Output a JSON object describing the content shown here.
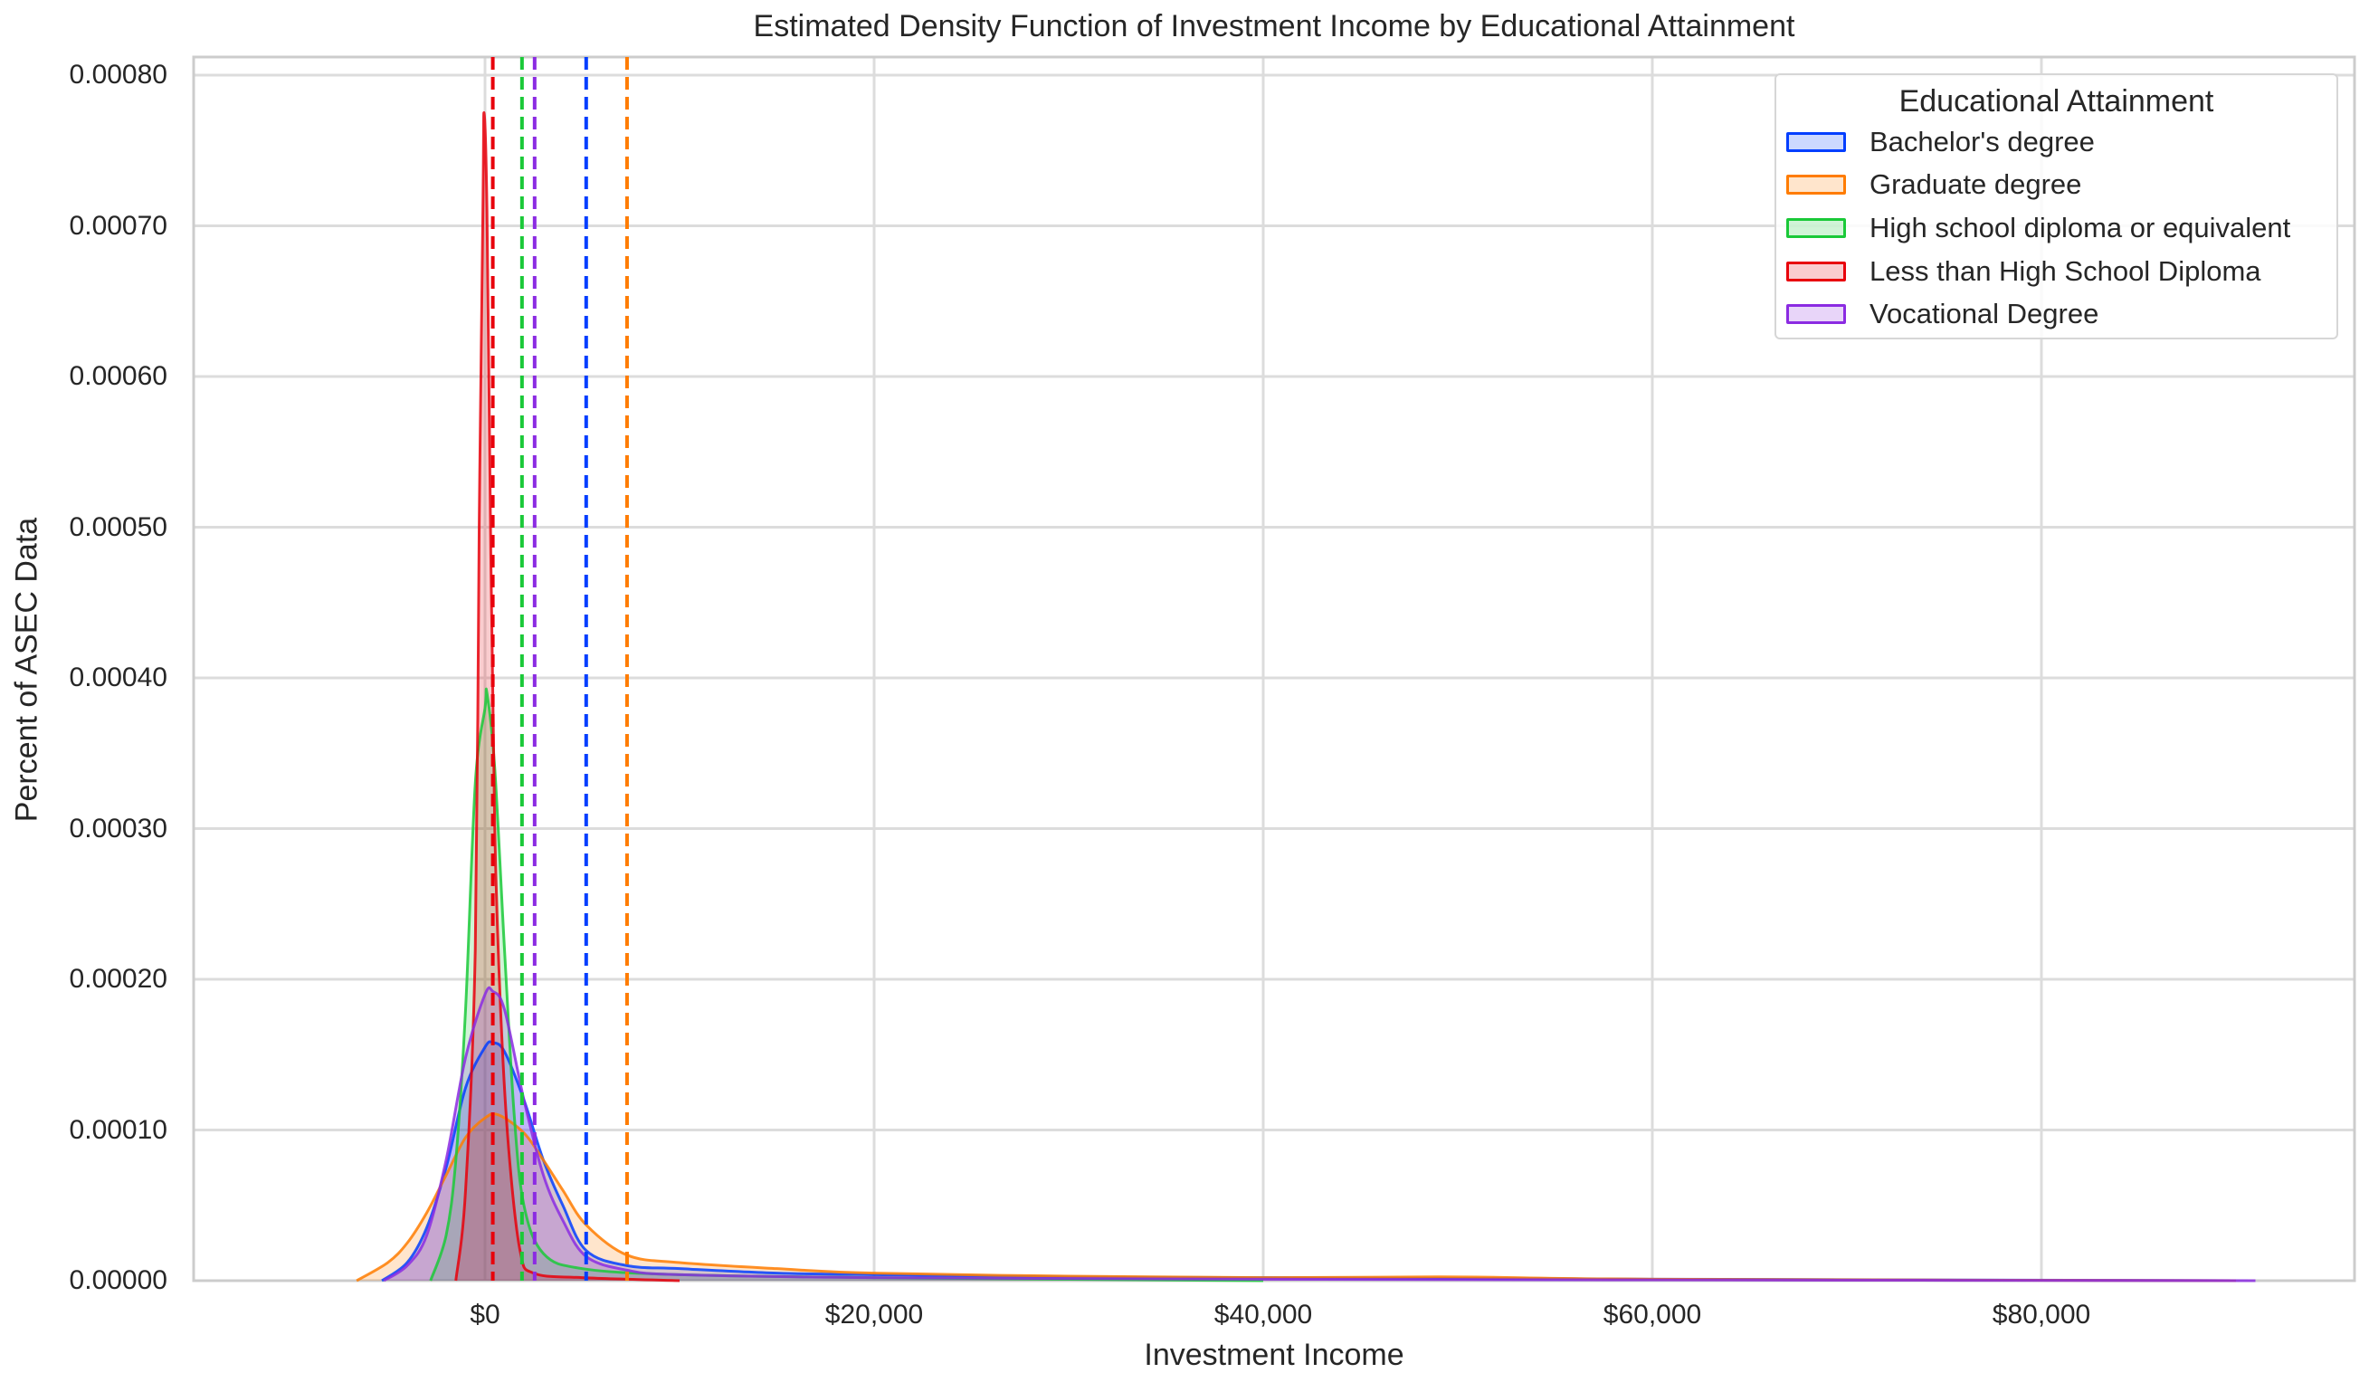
{
  "chart_data": {
    "type": "area",
    "title": "Estimated Density Function of Investment Income by Educational Attainment",
    "xlabel": "Investment Income",
    "ylabel": "Percent of ASEC Data",
    "xlim": [
      -15000,
      96000
    ],
    "ylim": [
      0,
      0.00081
    ],
    "grid": true,
    "legend_position": "upper right",
    "legend_title": "Educational Attainment",
    "x_ticks": [
      0,
      20000,
      40000,
      60000,
      80000
    ],
    "x_tick_labels": [
      "$0",
      "$20,000",
      "$40,000",
      "$60,000",
      "$80,000"
    ],
    "y_ticks": [
      0,
      0.0001,
      0.0002,
      0.0003,
      0.0004,
      0.0005,
      0.0006,
      0.0007,
      0.0008
    ],
    "y_tick_labels": [
      "0.00000",
      "0.00010",
      "0.00020",
      "0.00030",
      "0.00040",
      "0.00050",
      "0.00060",
      "0.00070",
      "0.00080"
    ],
    "series": [
      {
        "name": "Bachelor's degree",
        "color": "#023eff",
        "mean_line": 5200,
        "x": [
          -5300,
          -4000,
          -3000,
          -2000,
          -1000,
          0,
          400,
          1000,
          2000,
          3000,
          4000,
          5200,
          7300,
          10000,
          15000,
          20000,
          30000,
          40000,
          60000,
          90000
        ],
        "density": [
          0,
          1.2e-05,
          3.5e-05,
          7.5e-05,
          0.000128,
          0.000155,
          0.000158,
          0.000152,
          0.00012,
          8e-05,
          5e-05,
          2e-05,
          1e-05,
          8e-06,
          5e-06,
          4e-06,
          2.5e-06,
          2e-06,
          1e-06,
          0
        ]
      },
      {
        "name": "Graduate degree",
        "color": "#ff7c00",
        "mean_line": 7300,
        "x": [
          -6600,
          -5000,
          -4000,
          -3000,
          -2000,
          -1000,
          0,
          700,
          2000,
          3000,
          4000,
          5200,
          7300,
          10000,
          15000,
          20000,
          30000,
          40000,
          50000,
          60000,
          90000
        ],
        "density": [
          0,
          1.2e-05,
          2.5e-05,
          4.5e-05,
          7e-05,
          9.5e-05,
          0.000108,
          0.00011,
          9.8e-05,
          8e-05,
          6e-05,
          3.7e-05,
          1.7e-05,
          1.2e-05,
          8e-06,
          5e-06,
          3e-06,
          2e-06,
          2.5e-06,
          1e-06,
          0
        ]
      },
      {
        "name": "High school diploma or equivalent",
        "color": "#1ac938",
        "mean_line": 1900,
        "x": [
          -2800,
          -2000,
          -1500,
          -1000,
          -500,
          0,
          100,
          500,
          1000,
          1500,
          2000,
          3000,
          5000,
          10000,
          20000,
          40000
        ],
        "density": [
          0,
          3e-05,
          8e-05,
          0.00018,
          0.00033,
          0.00038,
          0.00039,
          0.00034,
          0.00022,
          0.00011,
          5e-05,
          1.8e-05,
          8e-06,
          4e-06,
          2e-06,
          0
        ]
      },
      {
        "name": "Less than High School Diploma",
        "color": "#e8000b",
        "mean_line": 400,
        "x": [
          -1500,
          -1000,
          -500,
          -300,
          -100,
          -50,
          100,
          300,
          500,
          800,
          1200,
          1800,
          2500,
          5000,
          10000
        ],
        "density": [
          0,
          6e-05,
          0.00022,
          0.0005,
          0.00072,
          0.000775,
          0.00071,
          0.00048,
          0.0003,
          0.00018,
          9e-05,
          2e-05,
          5e-06,
          2e-06,
          0
        ]
      },
      {
        "name": "Vocational Degree",
        "color": "#8b2be2",
        "mean_line": 2550,
        "x": [
          -5200,
          -4000,
          -3000,
          -2000,
          -1000,
          0,
          400,
          1000,
          2000,
          3000,
          4000,
          5200,
          7300,
          10000,
          20000,
          40000,
          60000,
          91000
        ],
        "density": [
          0,
          1e-05,
          3e-05,
          8e-05,
          0.000148,
          0.00019,
          0.000192,
          0.00018,
          0.00012,
          7e-05,
          4e-05,
          1.6e-05,
          7e-06,
          4e-06,
          2e-06,
          1e-06,
          5e-07,
          0
        ]
      }
    ]
  }
}
